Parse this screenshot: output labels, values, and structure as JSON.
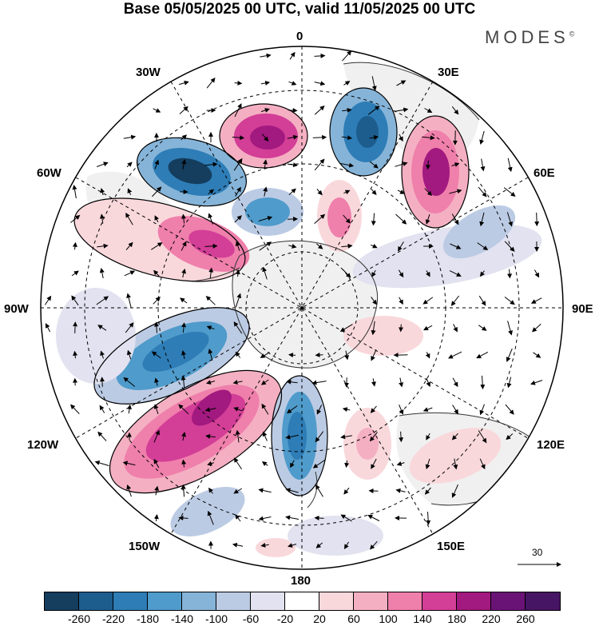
{
  "title": "Base 05/05/2025 00 UTC, valid 11/05/2025 00 UTC",
  "brand": "MODES",
  "brand_mark": "©",
  "longitude_labels": {
    "n0": "0",
    "n30e": "30E",
    "n60e": "60E",
    "n90e": "90E",
    "n120e": "120E",
    "n150e": "150E",
    "n180": "180",
    "n150w": "150W",
    "n120w": "120W",
    "n90w": "90W",
    "n60w": "60W",
    "n30w": "30W"
  },
  "vector_reference": "30",
  "colorbar": {
    "ticks": [
      "-260",
      "-220",
      "-180",
      "-140",
      "-100",
      "-60",
      "-20",
      "20",
      "60",
      "100",
      "140",
      "180",
      "220",
      "260"
    ],
    "colors": [
      "#143d5e",
      "#1d5d8e",
      "#2e7db6",
      "#4f9bcb",
      "#86b4d8",
      "#bccbe4",
      "#e2e2f0",
      "#ffffff",
      "#f9d8dc",
      "#f4b0c2",
      "#ef7fab",
      "#d33e97",
      "#a2197f",
      "#6a1377",
      "#461563"
    ]
  }
}
